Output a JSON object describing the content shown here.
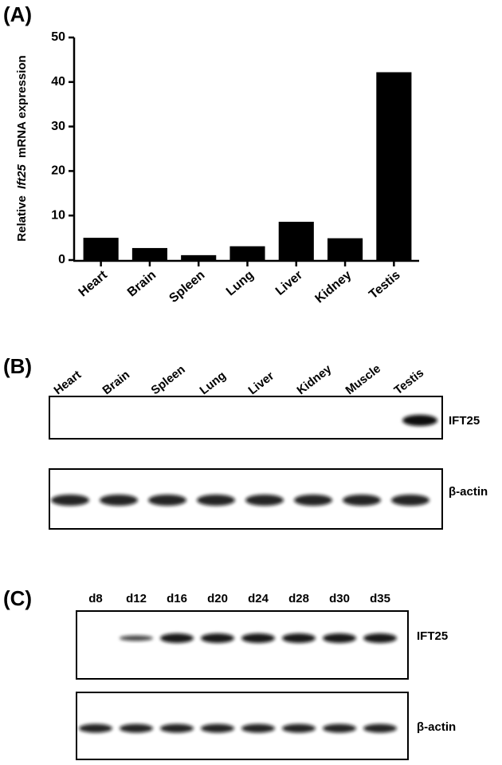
{
  "panel_labels": [
    "(A)",
    "(B)",
    "(C)"
  ],
  "chart_data": {
    "type": "bar",
    "y_label": {
      "before": "Relative",
      "italic": "Ift25",
      "after": "mRNA expression"
    },
    "categories": [
      "Heart",
      "Brain",
      "Spleen",
      "Lung",
      "Liver",
      "Kidney",
      "Testis"
    ],
    "values": [
      5,
      2.7,
      1.1,
      3.1,
      8.6,
      4.9,
      42.2
    ],
    "color": "#000000",
    "ylim": [
      0,
      50
    ],
    "yticks": [
      0,
      10,
      20,
      30,
      40,
      50
    ],
    "grid": false
  },
  "blot_b": {
    "lanes": [
      "Heart",
      "Brain",
      "Spleen",
      "Lung",
      "Liver",
      "Kidney",
      "Muscle",
      "Testis"
    ],
    "rows": [
      "IFT25",
      "β-actin"
    ]
  },
  "blot_c": {
    "lanes": [
      "d8",
      "d12",
      "d16",
      "d20",
      "d24",
      "d28",
      "d30",
      "d35"
    ],
    "rows": [
      "IFT25",
      "β-actin"
    ]
  }
}
